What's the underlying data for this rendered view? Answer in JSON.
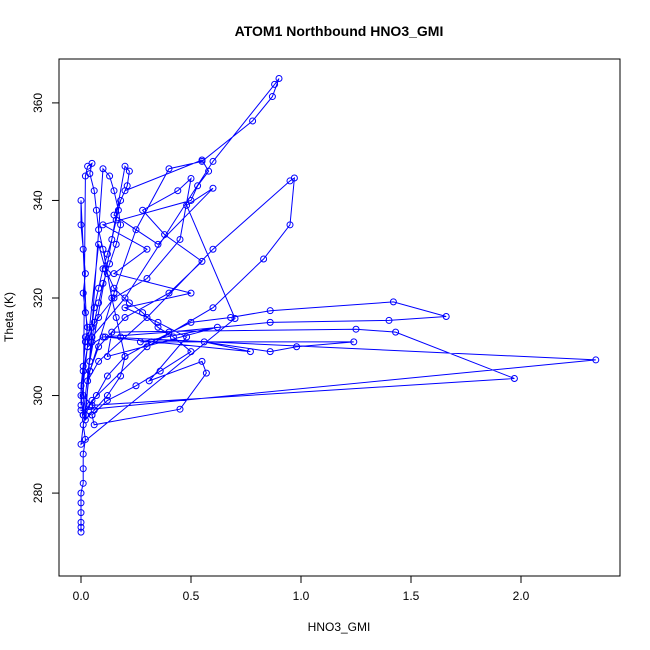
{
  "chart_data": {
    "type": "scatter",
    "title": "ATOM1 Northbound HNO3_GMI",
    "xlabel": "HNO3_GMI",
    "ylabel": "Theta (K)",
    "xlim": [
      -0.1,
      2.45
    ],
    "ylim": [
      263,
      369
    ],
    "xticks": [
      0.0,
      0.5,
      1.0,
      1.5,
      2.0
    ],
    "xtick_labels": [
      "0.0",
      "0.5",
      "1.0",
      "1.5",
      "2.0"
    ],
    "yticks": [
      280,
      300,
      320,
      340,
      360
    ],
    "ytick_labels": [
      "280",
      "300",
      "320",
      "340",
      "360"
    ],
    "grid": false,
    "legend": "none",
    "markers": "open-circle",
    "connected": true,
    "series": [
      {
        "color": "#0000ff",
        "points": [
          [
            0.0,
            272.0
          ],
          [
            0.0,
            273.0
          ],
          [
            0.0,
            274.0
          ],
          [
            0.0,
            276.0
          ],
          [
            0.0,
            278.0
          ],
          [
            0.0,
            280.0
          ],
          [
            0.01,
            282.0
          ],
          [
            0.01,
            285.0
          ],
          [
            0.01,
            288.0
          ],
          [
            0.02,
            291.0
          ],
          [
            0.01,
            294.0
          ],
          [
            0.02,
            296.0
          ],
          [
            0.04,
            298.0
          ],
          [
            0.07,
            300.0
          ],
          [
            0.12,
            304.0
          ],
          [
            0.2,
            308.0
          ],
          [
            0.32,
            311.0
          ],
          [
            0.5,
            315.0
          ],
          [
            0.68,
            316.0
          ],
          [
            0.86,
            317.4
          ],
          [
            1.42,
            319.2
          ],
          [
            1.66,
            316.2
          ],
          [
            1.4,
            315.4
          ],
          [
            0.86,
            315.0
          ],
          [
            0.4,
            313.0
          ],
          [
            0.1,
            312.0
          ],
          [
            0.03,
            310.0
          ],
          [
            0.01,
            305.0
          ],
          [
            0.01,
            300.0
          ],
          [
            0.05,
            298.0
          ],
          [
            1.97,
            303.5
          ],
          [
            1.43,
            313.0
          ],
          [
            1.25,
            313.6
          ],
          [
            0.14,
            313.0
          ],
          [
            0.12,
            308.0
          ],
          [
            0.62,
            314.0
          ],
          [
            0.27,
            311.0
          ],
          [
            1.24,
            311.0
          ],
          [
            0.98,
            310.0
          ],
          [
            0.86,
            309.0
          ],
          [
            0.56,
            311.0
          ],
          [
            0.77,
            309.0
          ],
          [
            0.11,
            312.0
          ],
          [
            2.34,
            307.3
          ],
          [
            0.0,
            297.0
          ],
          [
            0.05,
            296.0
          ],
          [
            0.06,
            294.0
          ],
          [
            0.45,
            297.2
          ],
          [
            0.57,
            304.6
          ],
          [
            0.55,
            307.0
          ],
          [
            0.31,
            303.0
          ],
          [
            0.48,
            312.0
          ],
          [
            0.35,
            315.0
          ],
          [
            0.2,
            318.0
          ],
          [
            0.5,
            321.0
          ],
          [
            0.15,
            325.0
          ],
          [
            0.3,
            330.0
          ],
          [
            0.1,
            335.0
          ],
          [
            0.5,
            340.0
          ],
          [
            0.53,
            343.0
          ],
          [
            0.58,
            346.0
          ],
          [
            0.55,
            348.3
          ],
          [
            0.2,
            342.0
          ],
          [
            0.15,
            337.0
          ],
          [
            0.35,
            331.0
          ],
          [
            0.6,
            342.5
          ],
          [
            0.48,
            339.0
          ],
          [
            0.7,
            315.8
          ],
          [
            0.0,
            290.0
          ],
          [
            0.04,
            305.0
          ],
          [
            0.08,
            310.0
          ],
          [
            0.2,
            316.0
          ],
          [
            0.4,
            321.0
          ],
          [
            0.55,
            327.5
          ],
          [
            0.38,
            333.0
          ],
          [
            0.28,
            338.0
          ],
          [
            0.44,
            342.0
          ],
          [
            0.5,
            344.5
          ],
          [
            0.45,
            332.0
          ],
          [
            0.3,
            324.0
          ],
          [
            0.15,
            320.0
          ],
          [
            0.08,
            316.0
          ],
          [
            0.02,
            312.0
          ],
          [
            0.0,
            300.0
          ],
          [
            0.01,
            296.0
          ],
          [
            0.05,
            299.0
          ],
          [
            0.3,
            310.0
          ],
          [
            0.6,
            318.0
          ],
          [
            0.83,
            328.0
          ],
          [
            0.95,
            335.0
          ],
          [
            0.97,
            344.6
          ],
          [
            0.95,
            344.0
          ],
          [
            0.6,
            330.0
          ],
          [
            0.3,
            316.0
          ],
          [
            0.08,
            307.0
          ],
          [
            0.03,
            303.0
          ],
          [
            0.04,
            305.0
          ],
          [
            0.15,
            321.0
          ],
          [
            0.25,
            334.0
          ],
          [
            0.4,
            346.5
          ],
          [
            0.55,
            348.0
          ],
          [
            0.78,
            356.3
          ],
          [
            0.87,
            361.3
          ],
          [
            0.9,
            365.0
          ],
          [
            0.88,
            363.8
          ],
          [
            0.6,
            348.0
          ],
          [
            0.2,
            320.0
          ],
          [
            0.05,
            312.0
          ],
          [
            0.01,
            296.0
          ],
          [
            0.02,
            345.0
          ],
          [
            0.03,
            347.0
          ],
          [
            0.05,
            347.6
          ],
          [
            0.04,
            345.5
          ],
          [
            0.06,
            342.0
          ],
          [
            0.07,
            338.0
          ],
          [
            0.08,
            334.0
          ],
          [
            0.1,
            330.0
          ],
          [
            0.12,
            325.0
          ],
          [
            0.14,
            320.0
          ],
          [
            0.16,
            316.0
          ],
          [
            0.18,
            312.0
          ],
          [
            0.2,
            308.0
          ],
          [
            0.18,
            304.0
          ],
          [
            0.12,
            300.0
          ],
          [
            0.06,
            297.0
          ],
          [
            0.02,
            295.0
          ],
          [
            0.1,
            346.5
          ],
          [
            0.13,
            345.0
          ],
          [
            0.15,
            342.0
          ],
          [
            0.17,
            338.0
          ],
          [
            0.18,
            335.0
          ],
          [
            0.16,
            331.0
          ],
          [
            0.13,
            327.0
          ],
          [
            0.1,
            323.0
          ],
          [
            0.08,
            319.0
          ],
          [
            0.06,
            315.0
          ],
          [
            0.05,
            311.0
          ],
          [
            0.04,
            307.0
          ],
          [
            0.2,
            347.0
          ],
          [
            0.22,
            346.0
          ],
          [
            0.21,
            343.0
          ],
          [
            0.18,
            340.0
          ],
          [
            0.16,
            336.0
          ],
          [
            0.14,
            332.0
          ],
          [
            0.12,
            329.0
          ],
          [
            0.1,
            326.0
          ],
          [
            0.08,
            322.0
          ],
          [
            0.06,
            318.0
          ],
          [
            0.05,
            314.0
          ],
          [
            0.03,
            310.0
          ],
          [
            0.0,
            340.0
          ],
          [
            0.0,
            335.0
          ],
          [
            0.01,
            330.0
          ],
          [
            0.02,
            325.0
          ],
          [
            0.01,
            321.0
          ],
          [
            0.02,
            317.0
          ],
          [
            0.03,
            314.0
          ],
          [
            0.02,
            311.0
          ],
          [
            0.01,
            306.0
          ],
          [
            0.0,
            302.0
          ],
          [
            0.0,
            298.0
          ],
          [
            0.08,
            331.0
          ],
          [
            0.11,
            326.0
          ],
          [
            0.15,
            322.0
          ],
          [
            0.22,
            319.0
          ],
          [
            0.28,
            317.0
          ],
          [
            0.35,
            314.0
          ],
          [
            0.42,
            312.0
          ],
          [
            0.5,
            309.0
          ],
          [
            0.36,
            305.0
          ],
          [
            0.25,
            302.0
          ],
          [
            0.12,
            299.0
          ],
          [
            0.05,
            296.0
          ]
        ]
      }
    ]
  }
}
